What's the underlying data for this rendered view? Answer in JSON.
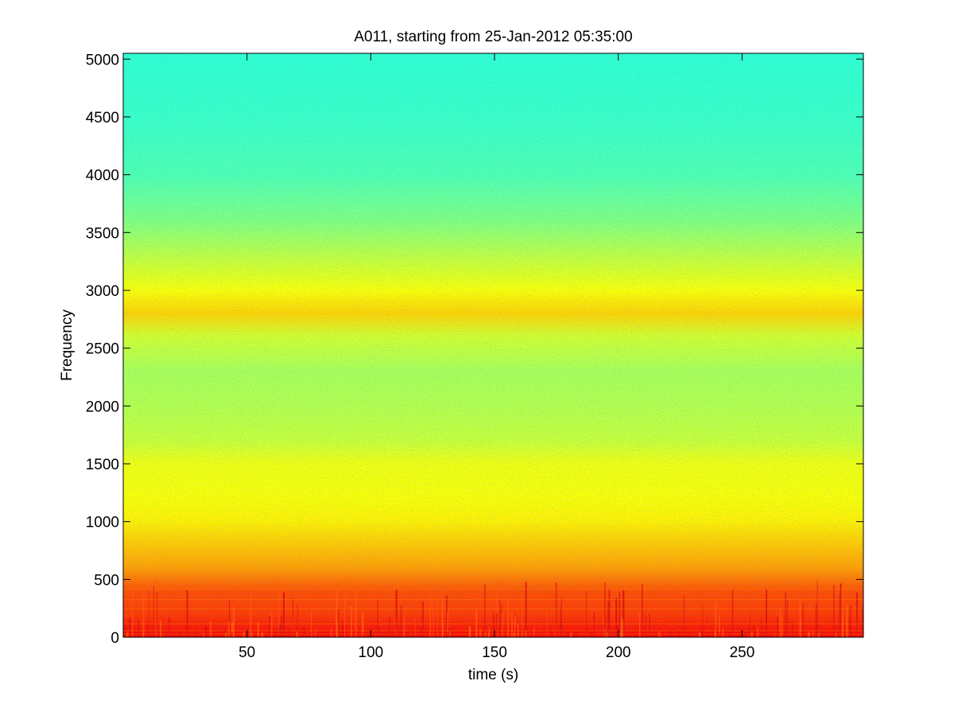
{
  "chart_data": {
    "type": "heatmap",
    "title": "A011, starting from 25-Jan-2012 05:35:00",
    "xlabel": "time (s)",
    "ylabel": "Frequency",
    "xlim": [
      0,
      299
    ],
    "ylim": [
      0,
      5050
    ],
    "x_ticks": [
      {
        "value": 50,
        "label": "50"
      },
      {
        "value": 100,
        "label": "100"
      },
      {
        "value": 150,
        "label": "150"
      },
      {
        "value": 200,
        "label": "200"
      },
      {
        "value": 250,
        "label": "250"
      }
    ],
    "y_ticks": [
      {
        "value": 0,
        "label": "0"
      },
      {
        "value": 500,
        "label": "500"
      },
      {
        "value": 1000,
        "label": "1000"
      },
      {
        "value": 1500,
        "label": "1500"
      },
      {
        "value": 2000,
        "label": "2000"
      },
      {
        "value": 2500,
        "label": "2500"
      },
      {
        "value": 3000,
        "label": "3000"
      },
      {
        "value": 3500,
        "label": "3500"
      },
      {
        "value": 4000,
        "label": "4000"
      },
      {
        "value": 4500,
        "label": "4500"
      },
      {
        "value": 5000,
        "label": "5000"
      }
    ],
    "colormap": "jet",
    "colors": {
      "low": "#2fd9c8",
      "mid": "#7de85a",
      "high": "#ffff00",
      "peak": "#ff3a10"
    },
    "intensity_profile": [
      {
        "frequency": 5000,
        "level": 0.42
      },
      {
        "frequency": 4500,
        "level": 0.43
      },
      {
        "frequency": 4000,
        "level": 0.45
      },
      {
        "frequency": 3600,
        "level": 0.5
      },
      {
        "frequency": 3300,
        "level": 0.56
      },
      {
        "frequency": 3000,
        "level": 0.62
      },
      {
        "frequency": 2800,
        "level": 0.67
      },
      {
        "frequency": 2600,
        "level": 0.58
      },
      {
        "frequency": 2300,
        "level": 0.54
      },
      {
        "frequency": 2000,
        "level": 0.55
      },
      {
        "frequency": 1700,
        "level": 0.57
      },
      {
        "frequency": 1500,
        "level": 0.61
      },
      {
        "frequency": 1200,
        "level": 0.62
      },
      {
        "frequency": 1000,
        "level": 0.64
      },
      {
        "frequency": 800,
        "level": 0.68
      },
      {
        "frequency": 600,
        "level": 0.72
      },
      {
        "frequency": 400,
        "level": 0.8
      },
      {
        "frequency": 200,
        "level": 0.82
      },
      {
        "frequency": 0,
        "level": 0.88
      }
    ],
    "grid": false
  }
}
